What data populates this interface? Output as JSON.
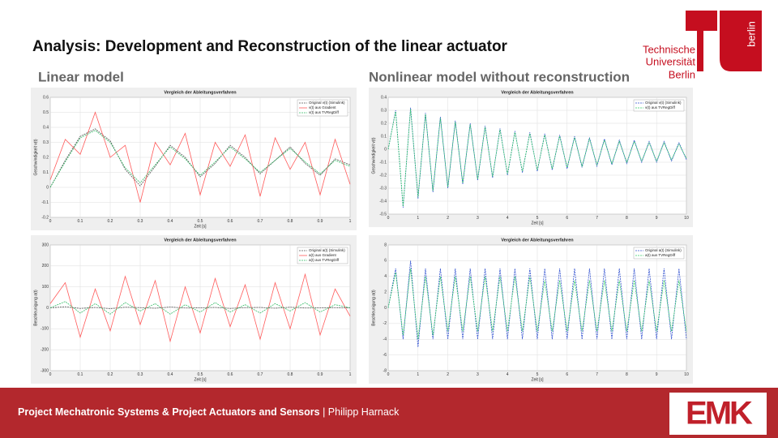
{
  "header": {
    "title": "Analysis: Development and Reconstruction of the linear actuator",
    "logo_lines": [
      "Technische",
      "Universität",
      "Berlin"
    ],
    "logo_side": "berlin"
  },
  "sections": [
    "Linear model",
    "Nonlinear model without reconstruction"
  ],
  "footer": {
    "project": "Project Mechatronic Systems & Project Actuators and Sensors",
    "separator": "|",
    "author": "Philipp Harnack",
    "logo": "EMK"
  },
  "chart_data": [
    {
      "type": "line",
      "title": "Vergleich der Ableitungsverfahren",
      "xlabel": "Zeit [s]",
      "ylabel": "Geschwindigkeit v(t)",
      "xlim": [
        0,
        1
      ],
      "xticks": [
        0,
        0.1,
        0.2,
        0.3,
        0.4,
        0.5,
        0.6,
        0.7,
        0.8,
        0.9,
        1
      ],
      "ylim": [
        -0.2,
        0.6
      ],
      "yticks": [
        -0.2,
        -0.1,
        0,
        0.1,
        0.2,
        0.3,
        0.4,
        0.5,
        0.6
      ],
      "grid": true,
      "x": [
        0,
        0.05,
        0.1,
        0.15,
        0.2,
        0.25,
        0.3,
        0.35,
        0.4,
        0.45,
        0.5,
        0.55,
        0.6,
        0.65,
        0.7,
        0.75,
        0.8,
        0.85,
        0.9,
        0.95,
        1
      ],
      "series": [
        {
          "name": "Original v(t) (Simulink)",
          "color": "#555555",
          "dashed": true,
          "values": [
            0,
            0.18,
            0.34,
            0.39,
            0.31,
            0.12,
            0.01,
            0.14,
            0.28,
            0.2,
            0.07,
            0.16,
            0.28,
            0.2,
            0.09,
            0.18,
            0.27,
            0.16,
            0.08,
            0.19,
            0.15
          ]
        },
        {
          "name": "v(t) aus Gradient",
          "color": "#ff5a5a",
          "dashed": false,
          "values": [
            0.05,
            0.32,
            0.22,
            0.5,
            0.2,
            0.28,
            -0.1,
            0.3,
            0.15,
            0.36,
            -0.05,
            0.3,
            0.14,
            0.35,
            -0.06,
            0.33,
            0.12,
            0.3,
            -0.05,
            0.32,
            0.02
          ]
        },
        {
          "name": "v(t) aus TVRegDiff",
          "color": "#33bb66",
          "dashed": true,
          "values": [
            0,
            0.17,
            0.33,
            0.38,
            0.3,
            0.13,
            0.03,
            0.15,
            0.27,
            0.19,
            0.08,
            0.17,
            0.27,
            0.19,
            0.1,
            0.18,
            0.26,
            0.17,
            0.09,
            0.18,
            0.14
          ]
        }
      ]
    },
    {
      "type": "line",
      "title": "Vergleich der Ableitungsverfahren",
      "xlabel": "Zeit [s]",
      "ylabel": "Beschleunigung a(t)",
      "xlim": [
        0,
        1
      ],
      "xticks": [
        0,
        0.1,
        0.2,
        0.3,
        0.4,
        0.5,
        0.6,
        0.7,
        0.8,
        0.9,
        1
      ],
      "ylim": [
        -300,
        300
      ],
      "yticks": [
        -300,
        -200,
        -100,
        0,
        100,
        200,
        300
      ],
      "grid": true,
      "x": [
        0,
        0.05,
        0.1,
        0.15,
        0.2,
        0.25,
        0.3,
        0.35,
        0.4,
        0.45,
        0.5,
        0.55,
        0.6,
        0.65,
        0.7,
        0.75,
        0.8,
        0.85,
        0.9,
        0.95,
        1
      ],
      "series": [
        {
          "name": "Original a(t) (Simulink)",
          "color": "#555555",
          "dashed": true,
          "values": [
            0,
            5,
            -3,
            2,
            -4,
            3,
            1,
            -2,
            4,
            -1,
            0,
            2,
            -3,
            1,
            2,
            -2,
            3,
            -1,
            0,
            1,
            0
          ]
        },
        {
          "name": "a(t) aus Gradient",
          "color": "#ff5a5a",
          "dashed": false,
          "values": [
            20,
            120,
            -140,
            90,
            -110,
            150,
            -80,
            130,
            -160,
            100,
            -120,
            140,
            -90,
            110,
            -150,
            120,
            -100,
            160,
            -130,
            90,
            -40
          ]
        },
        {
          "name": "a(t) aus TVRegDiff",
          "color": "#33bb66",
          "dashed": true,
          "values": [
            0,
            30,
            -25,
            20,
            -30,
            25,
            -15,
            20,
            -30,
            15,
            -20,
            25,
            -20,
            15,
            -25,
            20,
            -15,
            25,
            -20,
            15,
            0
          ]
        }
      ]
    },
    {
      "type": "line",
      "title": "Vergleich der Ableitungsverfahren",
      "xlabel": "Zeit [s]",
      "ylabel": "Geschwindigkeit v(t)",
      "xlim": [
        0,
        10
      ],
      "xticks": [
        0,
        1,
        2,
        3,
        4,
        5,
        6,
        7,
        8,
        9,
        10
      ],
      "ylim": [
        -0.5,
        0.4
      ],
      "yticks": [
        -0.5,
        -0.4,
        -0.3,
        -0.2,
        -0.1,
        0,
        0.1,
        0.2,
        0.3,
        0.4
      ],
      "grid": true,
      "x": [
        0,
        0.25,
        0.5,
        0.75,
        1,
        1.25,
        1.5,
        1.75,
        2,
        2.25,
        2.5,
        2.75,
        3,
        3.25,
        3.5,
        3.75,
        4,
        4.25,
        4.5,
        4.75,
        5,
        5.25,
        5.5,
        5.75,
        6,
        6.25,
        6.5,
        6.75,
        7,
        7.25,
        7.5,
        7.75,
        8,
        8.25,
        8.5,
        8.75,
        9,
        9.25,
        9.5,
        9.75,
        10
      ],
      "series": [
        {
          "name": "Original v(t) (Simulink)",
          "color": "#3050d0",
          "dashed": true,
          "values": [
            0,
            0.3,
            -0.45,
            0.32,
            -0.38,
            0.28,
            -0.33,
            0.25,
            -0.3,
            0.22,
            -0.27,
            0.2,
            -0.24,
            0.18,
            -0.22,
            0.16,
            -0.2,
            0.14,
            -0.18,
            0.13,
            -0.17,
            0.12,
            -0.16,
            0.11,
            -0.15,
            0.1,
            -0.14,
            0.09,
            -0.13,
            0.08,
            -0.12,
            0.07,
            -0.11,
            0.07,
            -0.1,
            0.06,
            -0.1,
            0.06,
            -0.09,
            0.05,
            -0.08
          ]
        },
        {
          "name": "v(t) aus TVRegDiff",
          "color": "#33cc66",
          "dashed": true,
          "values": [
            0,
            0.29,
            -0.44,
            0.31,
            -0.37,
            0.27,
            -0.32,
            0.24,
            -0.29,
            0.21,
            -0.26,
            0.19,
            -0.23,
            0.17,
            -0.21,
            0.15,
            -0.19,
            0.13,
            -0.17,
            0.12,
            -0.16,
            0.11,
            -0.15,
            0.1,
            -0.14,
            0.09,
            -0.13,
            0.08,
            -0.12,
            0.07,
            -0.11,
            0.06,
            -0.1,
            0.06,
            -0.09,
            0.05,
            -0.09,
            0.05,
            -0.08,
            0.04,
            -0.07
          ]
        }
      ]
    },
    {
      "type": "line",
      "title": "Vergleich der Ableitungsverfahren",
      "xlabel": "Zeit [s]",
      "ylabel": "Beschleunigung a(t)",
      "xlim": [
        0,
        10
      ],
      "xticks": [
        0,
        1,
        2,
        3,
        4,
        5,
        6,
        7,
        8,
        9,
        10
      ],
      "ylim": [
        -8,
        8
      ],
      "yticks": [
        -8,
        -6,
        -4,
        -2,
        0,
        2,
        4,
        6,
        8
      ],
      "grid": true,
      "x": [
        0,
        0.25,
        0.5,
        0.75,
        1,
        1.25,
        1.5,
        1.75,
        2,
        2.25,
        2.5,
        2.75,
        3,
        3.25,
        3.5,
        3.75,
        4,
        4.25,
        4.5,
        4.75,
        5,
        5.25,
        5.5,
        5.75,
        6,
        6.25,
        6.5,
        6.75,
        7,
        7.25,
        7.5,
        7.75,
        8,
        8.25,
        8.5,
        8.75,
        9,
        9.25,
        9.5,
        9.75,
        10
      ],
      "series": [
        {
          "name": "Original a(t) (Simulink)",
          "color": "#3050d0",
          "dashed": true,
          "values": [
            0,
            5,
            -4,
            6,
            -5,
            5,
            -4,
            5,
            -4,
            5,
            -4,
            5,
            -4,
            5,
            -4,
            5,
            -4,
            5,
            -4,
            5,
            -4,
            5,
            -4,
            5,
            -4,
            5,
            -4,
            5,
            -4,
            5,
            -4,
            5,
            -4,
            5,
            -4,
            5,
            -4,
            5,
            -4,
            5,
            -4
          ]
        },
        {
          "name": "a(t) aus TVRegDiff",
          "color": "#33cc66",
          "dashed": true,
          "values": [
            0,
            4.5,
            -3.5,
            5,
            -4,
            4,
            -3.5,
            4,
            -3,
            4,
            -3,
            4,
            -3,
            4,
            -3,
            4,
            -3,
            4,
            -3,
            4,
            -3,
            3.5,
            -3,
            3.5,
            -3,
            3.5,
            -3,
            3.5,
            -3,
            3.5,
            -3,
            3.5,
            -3,
            3.5,
            -3,
            3.5,
            -3,
            3.5,
            -3,
            3.5,
            -3
          ]
        }
      ]
    }
  ]
}
